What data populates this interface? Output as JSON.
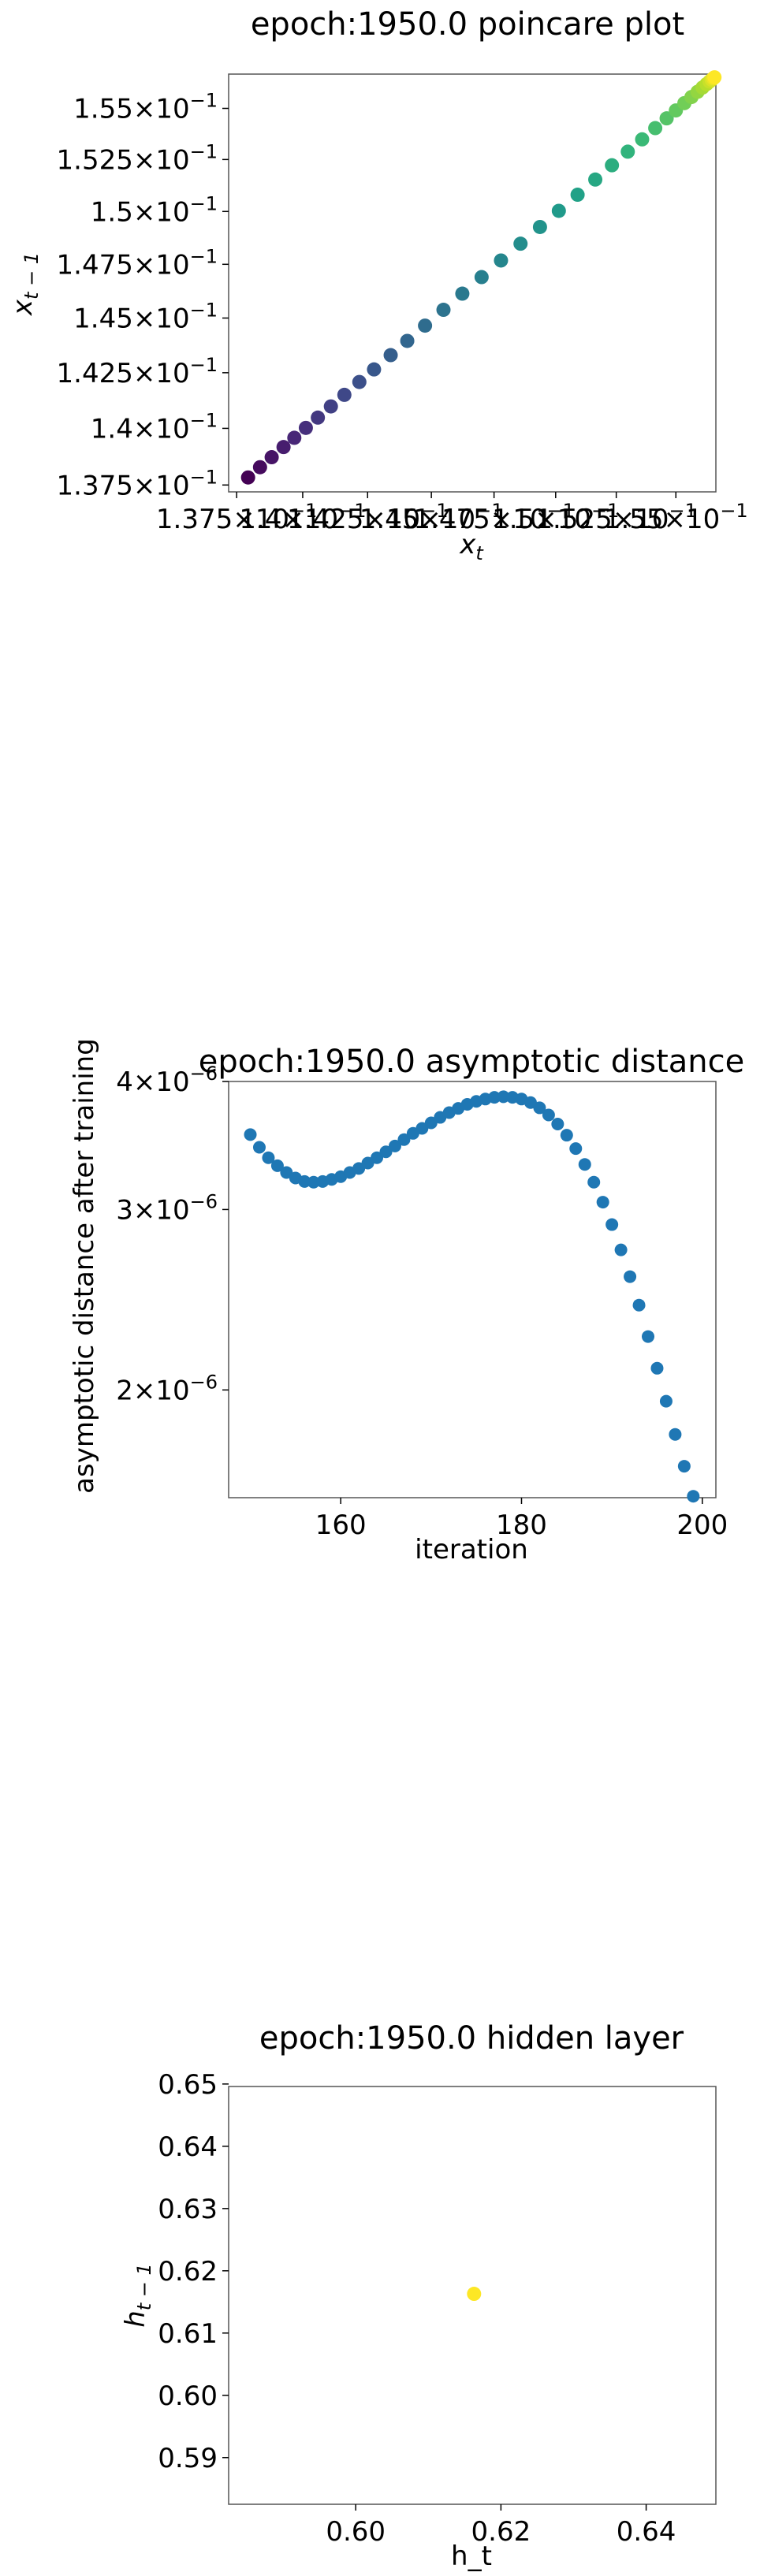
{
  "chart_data": [
    {
      "type": "scatter",
      "title": "epoch:1950.0 poincare plot",
      "xlabel": "x_t",
      "ylabel": "x_{t-1}",
      "xscale": "log",
      "yscale": "log",
      "xlim": [
        0.1372,
        0.1567
      ],
      "ylim": [
        0.1372,
        0.1567
      ],
      "grid": false,
      "colormap": "viridis",
      "yticks": [
        0.1375,
        0.14,
        0.1425,
        0.145,
        0.1475,
        0.15,
        0.1525,
        0.155
      ],
      "ytick_mantissas": [
        "1.375",
        "1.4",
        "1.425",
        "1.45",
        "1.475",
        "1.5",
        "1.525",
        "1.55"
      ],
      "xticks": [
        0.1375,
        0.14,
        0.1425,
        0.145,
        0.1475,
        0.15,
        0.1525,
        0.155
      ],
      "xtick_mantissas": [
        "1.375",
        "1.4",
        "1.425",
        "1.45",
        "1.475",
        "1.5",
        "1.525",
        "1.55"
      ],
      "tick_base": "10",
      "tick_exponent": "−1",
      "x": [
        0.13793,
        0.13838,
        0.13882,
        0.13927,
        0.13968,
        0.14012,
        0.14058,
        0.14108,
        0.1416,
        0.14218,
        0.14275,
        0.1434,
        0.14405,
        0.14475,
        0.14548,
        0.14623,
        0.147,
        0.14778,
        0.14857,
        0.14936,
        0.15013,
        0.1509,
        0.15163,
        0.15232,
        0.15298,
        0.15358,
        0.15413,
        0.15461,
        0.155,
        0.15536,
        0.15566,
        0.15592,
        0.15613,
        0.1563,
        0.15643,
        0.15652,
        0.15659,
        0.15664
      ],
      "y": [
        0.13783,
        0.13828,
        0.13872,
        0.13917,
        0.13958,
        0.14002,
        0.14048,
        0.14098,
        0.1415,
        0.14208,
        0.14265,
        0.1433,
        0.14395,
        0.14465,
        0.14538,
        0.14613,
        0.1469,
        0.14768,
        0.14847,
        0.14926,
        0.15003,
        0.1508,
        0.15153,
        0.15222,
        0.15288,
        0.15348,
        0.15403,
        0.15451,
        0.1549,
        0.15526,
        0.15556,
        0.15582,
        0.15603,
        0.1562,
        0.15633,
        0.15642,
        0.15649,
        0.15654
      ]
    },
    {
      "type": "scatter",
      "title": "epoch:1950.0 asymptotic distance",
      "xlabel": "iteration",
      "ylabel": "asymptotic distance after training",
      "yscale": "log",
      "xlim": [
        147.6,
        201.5
      ],
      "ylim": [
        1.57e-06,
        4e-06
      ],
      "grid": false,
      "color": "#1f77b4",
      "xticks": [
        160,
        180,
        200
      ],
      "yticks": [
        2e-06,
        3e-06,
        4e-06
      ],
      "ytick_mantissas": [
        "2",
        "3",
        "4"
      ],
      "tick_base": "10",
      "tick_exponent": "−6",
      "x": [
        150,
        151,
        152,
        153,
        154,
        155,
        156,
        157,
        158,
        159,
        160,
        161,
        162,
        163,
        164,
        165,
        166,
        167,
        168,
        169,
        170,
        171,
        172,
        173,
        174,
        175,
        176,
        177,
        178,
        179,
        180,
        181,
        182,
        183,
        184,
        185,
        186,
        187,
        188,
        189,
        190,
        191,
        192,
        193,
        194,
        195,
        196,
        197,
        198,
        199
      ],
      "y": [
        3.55e-06,
        3.45e-06,
        3.37e-06,
        3.31e-06,
        3.26e-06,
        3.22e-06,
        3.195e-06,
        3.19e-06,
        3.195e-06,
        3.21e-06,
        3.23e-06,
        3.26e-06,
        3.29e-06,
        3.33e-06,
        3.37e-06,
        3.415e-06,
        3.46e-06,
        3.51e-06,
        3.56e-06,
        3.6e-06,
        3.645e-06,
        3.69e-06,
        3.73e-06,
        3.765e-06,
        3.8e-06,
        3.825e-06,
        3.845e-06,
        3.86e-06,
        3.865e-06,
        3.86e-06,
        3.845e-06,
        3.815e-06,
        3.77e-06,
        3.71e-06,
        3.635e-06,
        3.545e-06,
        3.44e-06,
        3.32e-06,
        3.19e-06,
        3.05e-06,
        2.9e-06,
        2.74e-06,
        2.58e-06,
        2.42e-06,
        2.255e-06,
        2.1e-06,
        1.95e-06,
        1.81e-06,
        1.685e-06,
        1.575e-06
      ]
    },
    {
      "type": "scatter",
      "title": "epoch:1950.0 hidden layer",
      "xlabel": "h_t",
      "ylabel": "h_{t-1}",
      "xlim": [
        0.5825,
        0.6496
      ],
      "ylim": [
        0.5825,
        0.6496
      ],
      "grid": false,
      "color": "#fde725",
      "xticks": [
        0.6,
        0.62,
        0.64
      ],
      "xtick_labels": [
        "0.60",
        "0.62",
        "0.64"
      ],
      "yticks": [
        0.59,
        0.6,
        0.61,
        0.62,
        0.63,
        0.64,
        0.65
      ],
      "ytick_labels": [
        "0.59",
        "0.60",
        "0.61",
        "0.62",
        "0.63",
        "0.64",
        "0.65"
      ],
      "x": [
        0.6163
      ],
      "y": [
        0.6163
      ]
    }
  ]
}
